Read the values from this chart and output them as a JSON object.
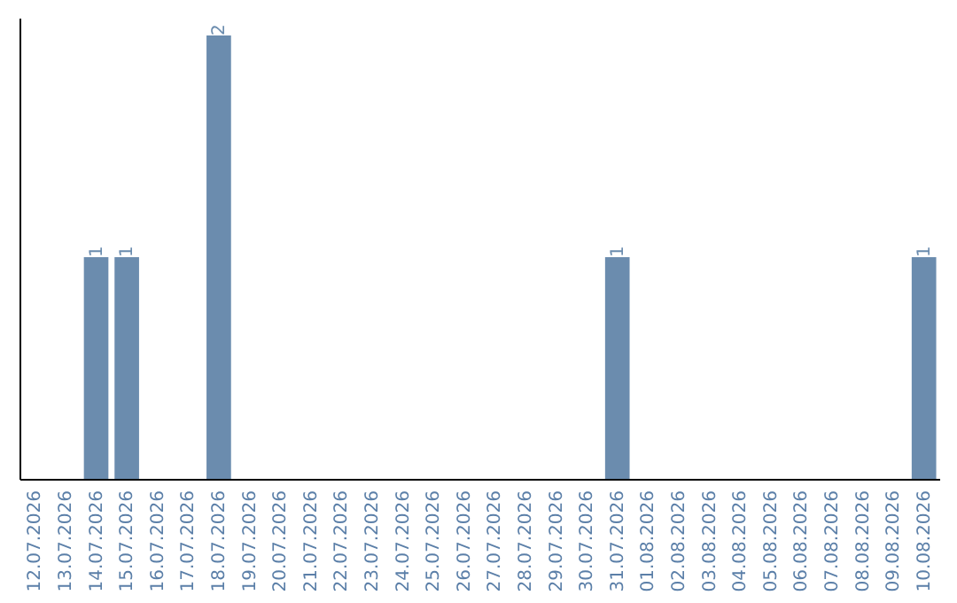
{
  "chart_data": {
    "type": "bar",
    "categories": [
      "12.07.2026",
      "13.07.2026",
      "14.07.2026",
      "15.07.2026",
      "16.07.2026",
      "17.07.2026",
      "18.07.2026",
      "19.07.2026",
      "20.07.2026",
      "21.07.2026",
      "22.07.2026",
      "23.07.2026",
      "24.07.2026",
      "25.07.2026",
      "26.07.2026",
      "27.07.2026",
      "28.07.2026",
      "29.07.2026",
      "30.07.2026",
      "31.07.2026",
      "01.08.2026",
      "02.08.2026",
      "03.08.2026",
      "04.08.2026",
      "05.08.2026",
      "06.08.2026",
      "07.08.2026",
      "08.08.2026",
      "09.08.2026",
      "10.08.2026"
    ],
    "values": [
      0,
      0,
      1,
      1,
      0,
      0,
      2,
      0,
      0,
      0,
      0,
      0,
      0,
      0,
      0,
      0,
      0,
      0,
      0,
      1,
      0,
      0,
      0,
      0,
      0,
      0,
      0,
      0,
      0,
      1
    ],
    "value_labels": [
      null,
      null,
      "1",
      "1",
      null,
      null,
      "2",
      null,
      null,
      null,
      null,
      null,
      null,
      null,
      null,
      null,
      null,
      null,
      null,
      "1",
      null,
      null,
      null,
      null,
      null,
      null,
      null,
      null,
      null,
      "1"
    ],
    "color": "#6b8cae",
    "tick_labels": "x",
    "grid": false
  }
}
